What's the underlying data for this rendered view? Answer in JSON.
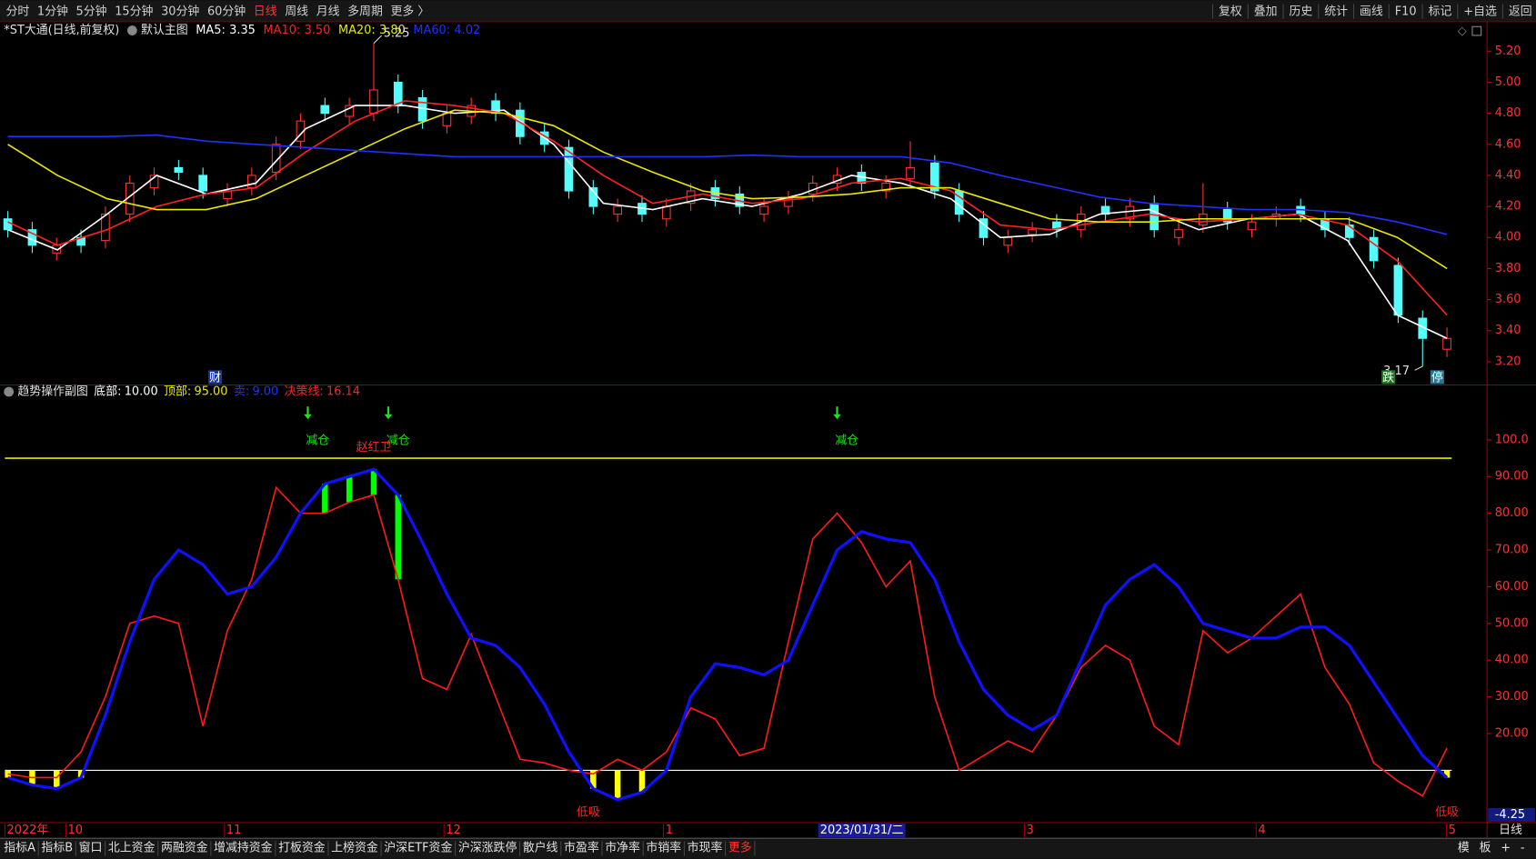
{
  "toolbar": {
    "periods": [
      "分时",
      "1分钟",
      "5分钟",
      "15分钟",
      "30分钟",
      "60分钟",
      "日线",
      "周线",
      "月线",
      "多周期",
      "更多 〉"
    ],
    "active_index": 6,
    "actions": [
      "复权",
      "叠加",
      "历史",
      "统计",
      "画线",
      "F10",
      "标记",
      "+自选",
      "返回"
    ]
  },
  "chart_data": [
    {
      "type": "candlestick",
      "title": "*ST大通(日线,前复权)",
      "subtitle": "默认主图",
      "up_color": "#ff3232",
      "down_color": "#54fcfc",
      "open": [
        4.12,
        4.05,
        3.9,
        4.0,
        3.98,
        4.15,
        4.32,
        4.45,
        4.4,
        4.25,
        4.32,
        4.42,
        4.62,
        4.85,
        4.78,
        4.8,
        5.0,
        4.9,
        4.72,
        4.78,
        4.88,
        4.82,
        4.68,
        4.58,
        4.32,
        4.15,
        4.22,
        4.12,
        4.22,
        4.32,
        4.28,
        4.15,
        4.2,
        4.28,
        4.35,
        4.42,
        4.3,
        4.38,
        4.48,
        4.3,
        4.12,
        3.95,
        4.02,
        4.1,
        4.05,
        4.2,
        4.12,
        4.22,
        4.0,
        4.08,
        4.18,
        4.05,
        4.12,
        4.2,
        4.12,
        4.08,
        4.0,
        3.82,
        3.48,
        3.28
      ],
      "close": [
        4.05,
        3.95,
        3.95,
        3.95,
        4.15,
        4.35,
        4.4,
        4.42,
        4.3,
        4.3,
        4.4,
        4.6,
        4.75,
        4.8,
        4.85,
        4.95,
        4.85,
        4.75,
        4.8,
        4.85,
        4.8,
        4.65,
        4.6,
        4.3,
        4.2,
        4.2,
        4.15,
        4.2,
        4.3,
        4.25,
        4.2,
        4.2,
        4.25,
        4.35,
        4.4,
        4.35,
        4.35,
        4.45,
        4.3,
        4.15,
        4.0,
        4.0,
        4.05,
        4.05,
        4.15,
        4.15,
        4.2,
        4.05,
        4.05,
        4.15,
        4.1,
        4.1,
        4.15,
        4.15,
        4.05,
        4.0,
        3.85,
        3.5,
        3.35,
        3.35
      ],
      "high": [
        4.17,
        4.1,
        4.0,
        4.05,
        4.2,
        4.4,
        4.45,
        4.5,
        4.45,
        4.35,
        4.45,
        4.65,
        4.8,
        4.9,
        4.9,
        5.25,
        5.05,
        4.95,
        4.85,
        4.9,
        4.93,
        4.87,
        4.73,
        4.63,
        4.37,
        4.25,
        4.27,
        4.25,
        4.35,
        4.37,
        4.33,
        4.25,
        4.3,
        4.4,
        4.45,
        4.47,
        4.4,
        4.62,
        4.53,
        4.35,
        4.17,
        4.05,
        4.1,
        4.15,
        4.2,
        4.25,
        4.25,
        4.27,
        4.1,
        4.35,
        4.23,
        4.15,
        4.2,
        4.25,
        4.17,
        4.13,
        4.05,
        3.87,
        3.53,
        3.42
      ],
      "low": [
        4.0,
        3.9,
        3.85,
        3.9,
        3.93,
        4.1,
        4.27,
        4.37,
        4.25,
        4.2,
        4.27,
        4.37,
        4.57,
        4.75,
        4.73,
        4.75,
        4.8,
        4.7,
        4.67,
        4.73,
        4.75,
        4.6,
        4.55,
        4.25,
        4.15,
        4.1,
        4.1,
        4.07,
        4.17,
        4.2,
        4.15,
        4.1,
        4.15,
        4.23,
        4.3,
        4.3,
        4.25,
        4.33,
        4.25,
        4.1,
        3.95,
        3.9,
        3.97,
        4.0,
        4.0,
        4.1,
        4.07,
        4.0,
        3.95,
        4.03,
        4.05,
        4.0,
        4.07,
        4.1,
        4.0,
        3.95,
        3.8,
        3.45,
        3.17,
        3.23
      ],
      "series": [
        {
          "name": "MA5:",
          "color": "#ffffff",
          "last": 3.35,
          "values": [
            4.05,
            3.92,
            4.15,
            4.4,
            4.28,
            4.35,
            4.7,
            4.85,
            4.85,
            4.8,
            4.82,
            4.6,
            4.22,
            4.18,
            4.25,
            4.2,
            4.28,
            4.4,
            4.35,
            4.25,
            4.0,
            4.02,
            4.15,
            4.18,
            4.05,
            4.12,
            4.15,
            3.98,
            3.5,
            3.35
          ]
        },
        {
          "name": "MA10:",
          "color": "#ff2020",
          "last": {
            "value": 3.5,
            "label": "3.50"
          },
          "values": [
            4.1,
            3.95,
            4.05,
            4.2,
            4.28,
            4.32,
            4.55,
            4.75,
            4.88,
            4.85,
            4.8,
            4.62,
            4.4,
            4.22,
            4.28,
            4.22,
            4.25,
            4.35,
            4.38,
            4.3,
            4.08,
            4.05,
            4.1,
            4.15,
            4.1,
            4.12,
            4.15,
            4.08,
            3.85,
            3.5
          ]
        },
        {
          "name": "MA20:",
          "color": "#e8e800",
          "last": {
            "value": 3.8,
            "label": "3.80"
          },
          "values": [
            4.6,
            4.4,
            4.25,
            4.18,
            4.18,
            4.25,
            4.4,
            4.55,
            4.7,
            4.82,
            4.8,
            4.72,
            4.55,
            4.42,
            4.3,
            4.25,
            4.26,
            4.28,
            4.32,
            4.32,
            4.22,
            4.12,
            4.1,
            4.1,
            4.12,
            4.12,
            4.12,
            4.12,
            4.0,
            3.8
          ]
        },
        {
          "name": "MA60:",
          "color": "#2030ff",
          "last": 4.02,
          "values": [
            4.65,
            4.65,
            4.65,
            4.66,
            4.62,
            4.6,
            4.58,
            4.56,
            4.54,
            4.52,
            4.52,
            4.52,
            4.52,
            4.52,
            4.52,
            4.53,
            4.52,
            4.52,
            4.52,
            4.48,
            4.4,
            4.33,
            4.26,
            4.22,
            4.2,
            4.18,
            4.18,
            4.16,
            4.1,
            4.02
          ]
        }
      ],
      "ylim": [
        3.05,
        5.39
      ],
      "yticks": [
        {
          "value": 5.2,
          "label": "5.20"
        },
        {
          "value": 5,
          "label": "5.00"
        },
        {
          "value": 4.8,
          "label": "4.80"
        },
        {
          "value": 4.6,
          "label": "4.60"
        },
        {
          "value": 4.4,
          "label": "4.40"
        },
        {
          "value": 4.2,
          "label": "4.20"
        },
        {
          "value": 4,
          "label": "4.00"
        },
        {
          "value": 3.8,
          "label": "3.80"
        },
        {
          "value": 3.6,
          "label": "3.60"
        },
        {
          "value": 3.4,
          "label": "3.40"
        },
        {
          "value": 3.2,
          "label": "3.20"
        }
      ],
      "extremes": [
        {
          "x": 15,
          "value": 5.25
        },
        {
          "x": 58,
          "value": 3.17
        }
      ],
      "markers": [
        {
          "text": "财",
          "x": 8.5,
          "color": "#1a3a9a"
        },
        {
          "text": "跌",
          "x": 56.6,
          "color": "#1a7a1a"
        },
        {
          "text": "停",
          "x": 58.6,
          "color": "#1a7a9a"
        }
      ]
    },
    {
      "type": "line",
      "title": "趋势操作副图",
      "params": [
        {
          "name": "底部:",
          "value": 10,
          "label": "10.00",
          "color": "#ffffff"
        },
        {
          "name": "顶部:",
          "value": 95,
          "label": "95.00",
          "color": "#e8e800"
        },
        {
          "name": "卖:",
          "value": 9,
          "label": "9.00",
          "color": "#2030ff"
        },
        {
          "name": "决策线:",
          "value": 16.14,
          "color": "#ff2020"
        }
      ],
      "series": [
        {
          "name": "趋势",
          "color": "#1010ff",
          "values": [
            8,
            6,
            5,
            8,
            25,
            45,
            62,
            70,
            66,
            58,
            60,
            68,
            80,
            88,
            90,
            92,
            85,
            72,
            58,
            46,
            44,
            38,
            28,
            15,
            5,
            2,
            4,
            10,
            30,
            39,
            38,
            36,
            40,
            55,
            70,
            75,
            73,
            72,
            62,
            45,
            32,
            25,
            21,
            25,
            40,
            55,
            62,
            66,
            60,
            50,
            48,
            46,
            46,
            49,
            49,
            44,
            34,
            24,
            14,
            8
          ]
        },
        {
          "name": "操作",
          "color": "#ff1a1a",
          "values": [
            9,
            8,
            8,
            15,
            30,
            50,
            52,
            50,
            22,
            48,
            62,
            87,
            80,
            80,
            83,
            85,
            62,
            35,
            32,
            47,
            30,
            13,
            12,
            10,
            9,
            13,
            10,
            15,
            27,
            24,
            14,
            16,
            45,
            73,
            80,
            72,
            60,
            67,
            30,
            10,
            14,
            18,
            15,
            25,
            38,
            44,
            40,
            22,
            17,
            48,
            42,
            46,
            52,
            58,
            38,
            28,
            12,
            7,
            3,
            16
          ]
        }
      ],
      "top_color": "#00ff00",
      "bottom_color": "#ffff00",
      "ylim": [
        -4.25,
        113.07
      ],
      "yticks": [
        {
          "value": 100,
          "label": "100.0"
        },
        {
          "value": 90,
          "label": "90.00"
        },
        {
          "value": 80,
          "label": "80.00"
        },
        {
          "value": 70,
          "label": "70.00"
        },
        {
          "value": 60,
          "label": "60.00"
        },
        {
          "value": 50,
          "label": "50.00"
        },
        {
          "value": 40,
          "label": "40.00"
        },
        {
          "value": 30,
          "label": "30.00"
        },
        {
          "value": 20,
          "label": "20.00"
        },
        -4.25
      ],
      "signals": [
        {
          "text": "减仓",
          "x": 12.7,
          "position": "top",
          "color": "#20e020"
        },
        {
          "text": "减仓",
          "x": 16,
          "position": "top",
          "color": "#20e020"
        },
        {
          "text": "减仓",
          "x": 34.4,
          "position": "top",
          "color": "#20e020"
        },
        {
          "text": "赵红卫",
          "x": 15,
          "position": "mid",
          "color": "#ff2020"
        },
        {
          "text": "低吸",
          "x": 23.8,
          "position": "bottom",
          "color": "#ff2020"
        },
        {
          "text": "低吸",
          "x": 59,
          "position": "bottom",
          "color": "#ff2020"
        }
      ],
      "xticks": [
        {
          "value": 0,
          "label": "2022年"
        },
        {
          "value": 2.5,
          "label": "10"
        },
        {
          "value": 9,
          "label": "11"
        },
        {
          "value": 18,
          "label": "12"
        },
        {
          "value": 27,
          "label": "1"
        },
        {
          "value": 41.8,
          "label": "3"
        },
        {
          "value": 51.3,
          "label": "4"
        },
        {
          "value": 59.1,
          "label": "5"
        }
      ],
      "cursor": {
        "value": 33.3,
        "label": "2023/01/31/二"
      },
      "period_label": "日线"
    }
  ],
  "tabs": {
    "items": [
      "指标A",
      "指标B",
      "窗口",
      "北上资金",
      "两融资金",
      "增减持资金",
      "打板资金",
      "上榜资金",
      "沪深ETF资金",
      "沪深涨跌停",
      "散户线",
      "市盈率",
      "市净率",
      "市销率",
      "市现率",
      "更多"
    ],
    "active_index": 15,
    "right": [
      "模",
      "板",
      "+",
      "-"
    ]
  }
}
